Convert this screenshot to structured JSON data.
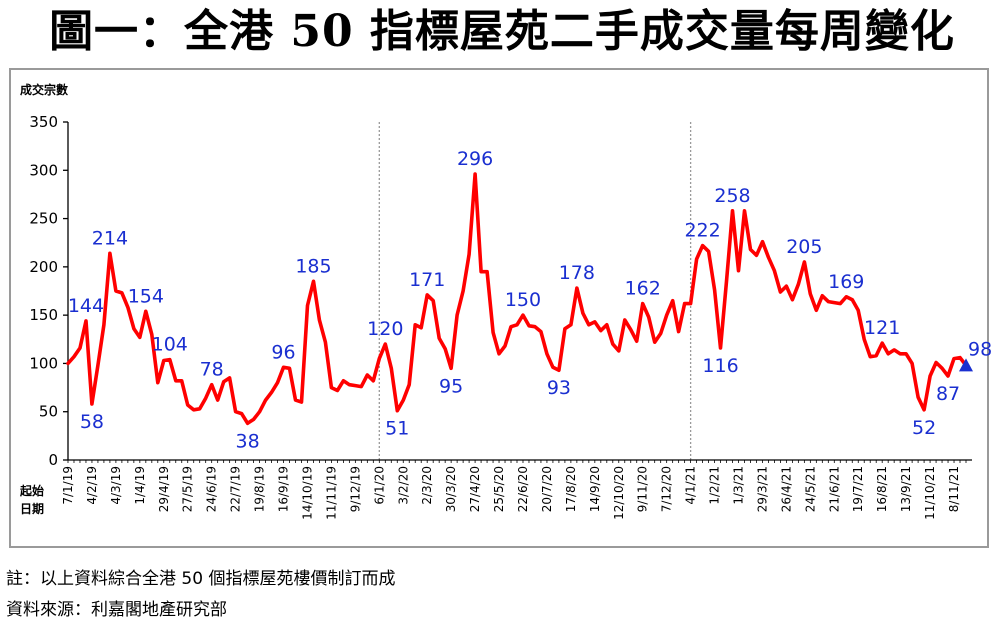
{
  "title": "圖一：全港 50 指標屋苑二手成交量每周變化",
  "footnote": "註：以上資料綜合全港 50 個指標屋苑樓價制訂而成",
  "source": "資料來源：利嘉閣地產研究部",
  "colors": {
    "line": "#ff0000",
    "label": "#1a2fd0",
    "marker": "#1a2fd0",
    "axis": "#000000",
    "divider": "#9a9a9a"
  },
  "chart_data": {
    "type": "line",
    "ylabel": "成交宗數",
    "xlabel_lines": [
      "起始",
      "日期"
    ],
    "ylim": [
      0,
      350
    ],
    "yticks": [
      0,
      50,
      100,
      150,
      200,
      250,
      300,
      350
    ],
    "grid": false,
    "tick_labels": [
      {
        "i": 0,
        "label": "7/1/19"
      },
      {
        "i": 4,
        "label": "4/2/19"
      },
      {
        "i": 8,
        "label": "4/3/19"
      },
      {
        "i": 12,
        "label": "1/4/19"
      },
      {
        "i": 16,
        "label": "29/4/19"
      },
      {
        "i": 20,
        "label": "27/5/19"
      },
      {
        "i": 24,
        "label": "24/6/19"
      },
      {
        "i": 28,
        "label": "22/7/19"
      },
      {
        "i": 32,
        "label": "19/8/19"
      },
      {
        "i": 36,
        "label": "16/9/19"
      },
      {
        "i": 40,
        "label": "14/10/19"
      },
      {
        "i": 44,
        "label": "11/11/19"
      },
      {
        "i": 48,
        "label": "9/12/19"
      },
      {
        "i": 52,
        "label": "6/1/20"
      },
      {
        "i": 56,
        "label": "3/2/20"
      },
      {
        "i": 60,
        "label": "2/3/20"
      },
      {
        "i": 64,
        "label": "30/3/20"
      },
      {
        "i": 68,
        "label": "27/4/20"
      },
      {
        "i": 72,
        "label": "25/5/20"
      },
      {
        "i": 76,
        "label": "22/6/20"
      },
      {
        "i": 80,
        "label": "20/7/20"
      },
      {
        "i": 84,
        "label": "17/8/20"
      },
      {
        "i": 88,
        "label": "14/9/20"
      },
      {
        "i": 92,
        "label": "12/10/20"
      },
      {
        "i": 96,
        "label": "9/11/20"
      },
      {
        "i": 100,
        "label": "7/12/20"
      },
      {
        "i": 104,
        "label": "4/1/21"
      },
      {
        "i": 108,
        "label": "1/2/21"
      },
      {
        "i": 112,
        "label": "1/3/21"
      },
      {
        "i": 116,
        "label": "29/3/21"
      },
      {
        "i": 120,
        "label": "26/4/21"
      },
      {
        "i": 124,
        "label": "24/5/21"
      },
      {
        "i": 128,
        "label": "21/6/21"
      },
      {
        "i": 132,
        "label": "19/7/21"
      },
      {
        "i": 136,
        "label": "16/8/21"
      },
      {
        "i": 140,
        "label": "13/9/21"
      },
      {
        "i": 144,
        "label": "11/10/21"
      },
      {
        "i": 148,
        "label": "8/11/21"
      }
    ],
    "dividers_at": [
      52,
      104
    ],
    "series": [
      {
        "values": [
          100,
          107,
          116,
          144,
          58,
          98,
          140,
          214,
          175,
          173,
          158,
          136,
          127,
          154,
          130,
          80,
          103,
          104,
          82,
          82,
          57,
          52,
          53,
          64,
          78,
          62,
          81,
          85,
          50,
          48,
          38,
          42,
          50,
          62,
          70,
          80,
          96,
          95,
          62,
          60,
          160,
          185,
          145,
          122,
          75,
          72,
          82,
          78,
          77,
          76,
          88,
          82,
          105,
          120,
          95,
          51,
          62,
          78,
          140,
          137,
          171,
          165,
          126,
          115,
          95,
          150,
          175,
          213,
          296,
          195,
          195,
          132,
          110,
          118,
          138,
          140,
          150,
          139,
          138,
          133,
          110,
          96,
          93,
          136,
          140,
          178,
          152,
          140,
          143,
          134,
          140,
          120,
          113,
          145,
          135,
          123,
          162,
          148,
          122,
          131,
          150,
          165,
          133,
          162,
          162,
          208,
          222,
          216,
          176,
          116,
          185,
          258,
          196,
          258,
          218,
          212,
          226,
          210,
          196,
          174,
          180,
          166,
          182,
          205,
          172,
          155,
          170,
          164,
          163,
          162,
          169,
          166,
          155,
          125,
          107,
          108,
          121,
          110,
          114,
          110,
          110,
          100,
          65,
          52,
          87,
          101,
          95,
          87,
          105,
          106,
          98
        ],
        "point_labels": [
          {
            "i": 3,
            "text": "144",
            "pos": "above"
          },
          {
            "i": 4,
            "text": "58",
            "pos": "below"
          },
          {
            "i": 7,
            "text": "214",
            "pos": "above"
          },
          {
            "i": 13,
            "text": "154",
            "pos": "above"
          },
          {
            "i": 17,
            "text": "104",
            "pos": "above"
          },
          {
            "i": 24,
            "text": "78",
            "pos": "above"
          },
          {
            "i": 30,
            "text": "38",
            "pos": "below"
          },
          {
            "i": 36,
            "text": "96",
            "pos": "above"
          },
          {
            "i": 41,
            "text": "185",
            "pos": "above"
          },
          {
            "i": 53,
            "text": "120",
            "pos": "above"
          },
          {
            "i": 55,
            "text": "51",
            "pos": "below"
          },
          {
            "i": 60,
            "text": "171",
            "pos": "above"
          },
          {
            "i": 64,
            "text": "95",
            "pos": "below"
          },
          {
            "i": 68,
            "text": "296",
            "pos": "above"
          },
          {
            "i": 76,
            "text": "150",
            "pos": "above"
          },
          {
            "i": 82,
            "text": "93",
            "pos": "below"
          },
          {
            "i": 85,
            "text": "178",
            "pos": "above"
          },
          {
            "i": 96,
            "text": "162",
            "pos": "above"
          },
          {
            "i": 106,
            "text": "222",
            "pos": "above"
          },
          {
            "i": 109,
            "text": "116",
            "pos": "below"
          },
          {
            "i": 111,
            "text": "258",
            "pos": "above"
          },
          {
            "i": 123,
            "text": "205",
            "pos": "above"
          },
          {
            "i": 130,
            "text": "169",
            "pos": "above"
          },
          {
            "i": 136,
            "text": "121",
            "pos": "above"
          },
          {
            "i": 143,
            "text": "52",
            "pos": "below"
          },
          {
            "i": 147,
            "text": "87",
            "pos": "below"
          },
          {
            "i": 150,
            "text": "98",
            "pos": "above-right"
          }
        ],
        "end_marker": "triangle"
      }
    ]
  }
}
